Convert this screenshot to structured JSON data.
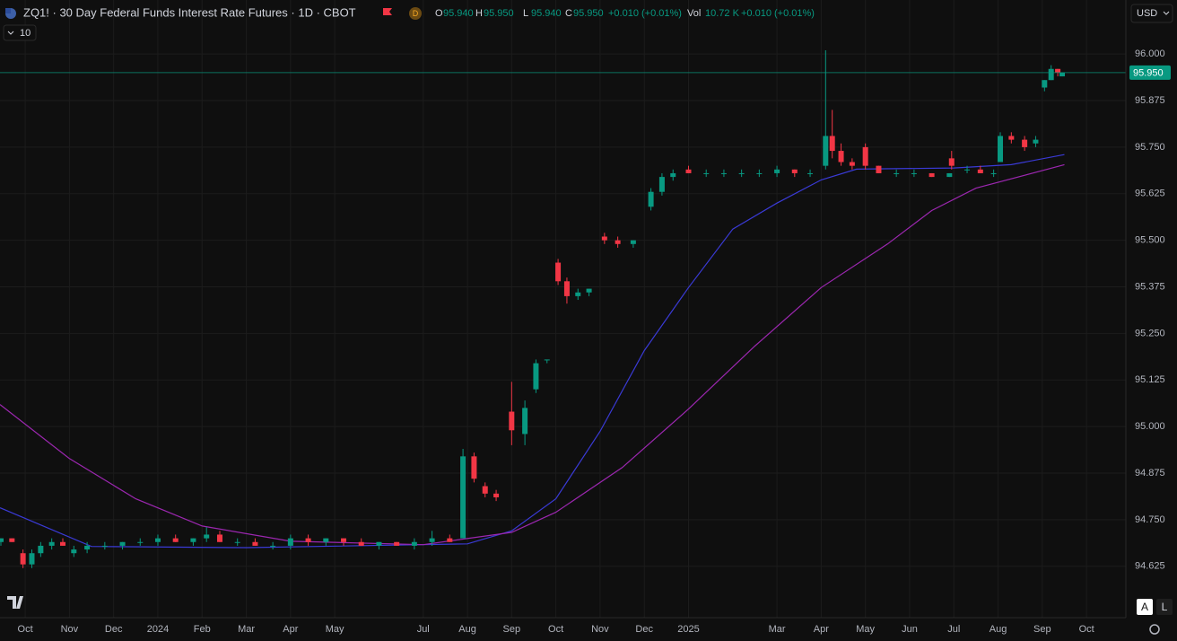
{
  "chart_data": {
    "type": "candlestick",
    "title": "ZQ1! · 30 Day Federal Funds Interest Rate Futures · 1D · CBOT",
    "interval_badge": "D",
    "ohlc_legend": [
      {
        "label": "O",
        "value": "95.940"
      },
      {
        "label": "H",
        "value": "95.950"
      },
      {
        "label": "L",
        "value": "95.940"
      },
      {
        "label": "C",
        "value": "95.950"
      }
    ],
    "change": "+0.010 (+0.01%)",
    "volume_label": "Vol",
    "volume": "10.72 K",
    "volume_change": "+0.010 (+0.01%)",
    "indicator_count": "10",
    "currency": "USD",
    "buttons": [
      "A",
      "L"
    ],
    "up_color": "#089981",
    "down_color": "#f23645",
    "grid": true,
    "xlim": [
      -0.57,
      24.89
    ],
    "ylim": [
      94.487,
      96.145
    ],
    "xticks": [
      {
        "value": 0,
        "label": "Oct"
      },
      {
        "value": 1,
        "label": "Nov"
      },
      {
        "value": 2,
        "label": "Dec"
      },
      {
        "value": 3,
        "label": "2024"
      },
      {
        "value": 4,
        "label": "Feb"
      },
      {
        "value": 5,
        "label": "Mar"
      },
      {
        "value": 6,
        "label": "Apr"
      },
      {
        "value": 7,
        "label": "May"
      },
      {
        "value": 9,
        "label": "Jul"
      },
      {
        "value": 10,
        "label": "Aug"
      },
      {
        "value": 11,
        "label": "Sep"
      },
      {
        "value": 12,
        "label": "Oct"
      },
      {
        "value": 13,
        "label": "Nov"
      },
      {
        "value": 14,
        "label": "Dec"
      },
      {
        "value": 15,
        "label": "2025"
      },
      {
        "value": 17,
        "label": "Mar"
      },
      {
        "value": 18,
        "label": "Apr"
      },
      {
        "value": 19,
        "label": "May"
      },
      {
        "value": 20,
        "label": "Jun"
      },
      {
        "value": 21,
        "label": "Jul"
      },
      {
        "value": 22,
        "label": "Aug"
      },
      {
        "value": 23,
        "label": "Sep"
      },
      {
        "value": 24,
        "label": "Oct"
      }
    ],
    "yticks": [
      {
        "value": 96.0,
        "label": "96.000"
      },
      {
        "value": 95.875,
        "label": "95.875"
      },
      {
        "value": 95.75,
        "label": "95.750"
      },
      {
        "value": 95.625,
        "label": "95.625"
      },
      {
        "value": 95.5,
        "label": "95.500"
      },
      {
        "value": 95.375,
        "label": "95.375"
      },
      {
        "value": 95.25,
        "label": "95.250"
      },
      {
        "value": 95.125,
        "label": "95.125"
      },
      {
        "value": 95.0,
        "label": "95.000"
      },
      {
        "value": 94.875,
        "label": "94.875"
      },
      {
        "value": 94.75,
        "label": "94.750"
      },
      {
        "value": 94.625,
        "label": "94.625"
      }
    ],
    "last_price": {
      "value": 95.95,
      "label": "95.950",
      "color": "#089981"
    },
    "x": [
      -0.55,
      -0.3,
      -0.05,
      0.15,
      0.35,
      0.6,
      0.85,
      1.1,
      1.4,
      1.8,
      2.2,
      2.6,
      3.0,
      3.4,
      3.8,
      4.1,
      4.4,
      4.8,
      5.2,
      5.6,
      6.0,
      6.4,
      6.8,
      7.2,
      7.6,
      8.0,
      8.4,
      8.8,
      9.2,
      9.6,
      9.9,
      10.15,
      10.4,
      10.65,
      11.0,
      11.3,
      11.55,
      11.8,
      12.05,
      12.25,
      12.5,
      12.75,
      13.1,
      13.4,
      13.75,
      14.15,
      14.4,
      14.65,
      15.0,
      15.4,
      15.8,
      16.2,
      16.6,
      17.0,
      17.4,
      17.75,
      18.1,
      18.25,
      18.45,
      18.7,
      19.0,
      19.3,
      19.7,
      20.1,
      20.5,
      20.9,
      20.95,
      21.3,
      21.6,
      21.9,
      22.05,
      22.3,
      22.6,
      22.85,
      23.05,
      23.2,
      23.35,
      23.45
    ],
    "open": [
      94.69,
      94.7,
      94.66,
      94.63,
      94.66,
      94.68,
      94.69,
      94.66,
      94.67,
      94.68,
      94.68,
      94.69,
      94.69,
      94.7,
      94.69,
      94.7,
      94.71,
      94.69,
      94.69,
      94.68,
      94.68,
      94.7,
      94.69,
      94.7,
      94.69,
      94.68,
      94.69,
      94.68,
      94.69,
      94.7,
      94.7,
      94.92,
      94.84,
      94.82,
      95.04,
      94.98,
      95.1,
      95.18,
      95.44,
      95.39,
      95.35,
      95.36,
      95.51,
      95.5,
      95.49,
      95.59,
      95.63,
      95.67,
      95.69,
      95.68,
      95.68,
      95.68,
      95.68,
      95.68,
      95.69,
      95.68,
      95.7,
      95.78,
      95.74,
      95.71,
      95.75,
      95.7,
      95.68,
      95.68,
      95.68,
      95.67,
      95.72,
      95.69,
      95.69,
      95.68,
      95.71,
      95.78,
      95.77,
      95.76,
      95.91,
      95.93,
      95.96,
      95.94
    ],
    "high": [
      94.7,
      94.7,
      94.67,
      94.67,
      94.69,
      94.7,
      94.7,
      94.68,
      94.69,
      94.69,
      94.69,
      94.7,
      94.71,
      94.71,
      94.7,
      94.73,
      94.72,
      94.7,
      94.7,
      94.69,
      94.71,
      94.71,
      94.7,
      94.7,
      94.7,
      94.69,
      94.69,
      94.7,
      94.72,
      94.71,
      94.94,
      94.93,
      94.85,
      94.83,
      95.12,
      95.07,
      95.18,
      95.18,
      95.45,
      95.4,
      95.37,
      95.37,
      95.52,
      95.51,
      95.5,
      95.64,
      95.68,
      95.69,
      95.7,
      95.69,
      95.69,
      95.69,
      95.69,
      95.7,
      95.69,
      95.69,
      96.01,
      95.85,
      95.76,
      95.72,
      95.76,
      95.7,
      95.69,
      95.69,
      95.68,
      95.68,
      95.74,
      95.7,
      95.7,
      95.69,
      95.79,
      95.79,
      95.78,
      95.78,
      95.93,
      95.97,
      95.96,
      95.95
    ],
    "low": [
      94.68,
      94.69,
      94.62,
      94.62,
      94.65,
      94.67,
      94.68,
      94.65,
      94.66,
      94.67,
      94.67,
      94.68,
      94.68,
      94.69,
      94.68,
      94.69,
      94.69,
      94.68,
      94.68,
      94.67,
      94.67,
      94.68,
      94.68,
      94.68,
      94.68,
      94.67,
      94.68,
      94.67,
      94.68,
      94.69,
      94.7,
      94.85,
      94.81,
      94.8,
      94.95,
      94.95,
      95.09,
      95.17,
      95.38,
      95.33,
      95.34,
      95.35,
      95.49,
      95.48,
      95.48,
      95.58,
      95.62,
      95.66,
      95.68,
      95.67,
      95.67,
      95.67,
      95.67,
      95.67,
      95.67,
      95.67,
      95.69,
      95.72,
      95.7,
      95.69,
      95.69,
      95.68,
      95.67,
      95.67,
      95.67,
      95.67,
      95.69,
      95.68,
      95.68,
      95.67,
      95.71,
      95.76,
      95.74,
      95.75,
      95.9,
      95.93,
      95.94,
      95.94
    ],
    "close": [
      94.7,
      94.69,
      94.63,
      94.66,
      94.68,
      94.69,
      94.68,
      94.67,
      94.68,
      94.68,
      94.69,
      94.69,
      94.7,
      94.69,
      94.7,
      94.71,
      94.69,
      94.69,
      94.68,
      94.68,
      94.7,
      94.69,
      94.7,
      94.69,
      94.68,
      94.69,
      94.68,
      94.69,
      94.7,
      94.69,
      94.92,
      94.86,
      94.82,
      94.81,
      94.99,
      95.05,
      95.17,
      95.18,
      95.39,
      95.35,
      95.36,
      95.37,
      95.5,
      95.49,
      95.5,
      95.63,
      95.67,
      95.68,
      95.68,
      95.68,
      95.68,
      95.68,
      95.68,
      95.69,
      95.68,
      95.68,
      95.78,
      95.74,
      95.71,
      95.7,
      95.7,
      95.68,
      95.68,
      95.68,
      95.67,
      95.68,
      95.7,
      95.69,
      95.68,
      95.68,
      95.78,
      95.77,
      95.75,
      95.77,
      95.93,
      95.96,
      95.95,
      95.95
    ],
    "series": [
      {
        "color": "#3a3ad6",
        "x": [
          -0.57,
          1.5,
          5,
          10,
          11,
          12,
          13,
          14,
          15,
          16,
          17,
          18,
          18.8,
          21,
          22.3,
          23.5
        ],
        "values": [
          94.782,
          94.678,
          94.675,
          94.685,
          94.72,
          94.806,
          94.987,
          95.204,
          95.373,
          95.53,
          95.6,
          95.662,
          95.691,
          95.694,
          95.703,
          95.73
        ]
      },
      {
        "color": "#9c27b0",
        "x": [
          -0.57,
          1,
          2.5,
          4,
          6,
          9,
          11,
          12,
          13.5,
          15,
          16.5,
          18,
          19.5,
          20.5,
          21.5,
          23.5
        ],
        "values": [
          95.059,
          94.914,
          94.806,
          94.733,
          94.692,
          94.683,
          94.716,
          94.77,
          94.89,
          95.047,
          95.216,
          95.373,
          95.49,
          95.58,
          95.64,
          95.703
        ]
      }
    ]
  }
}
